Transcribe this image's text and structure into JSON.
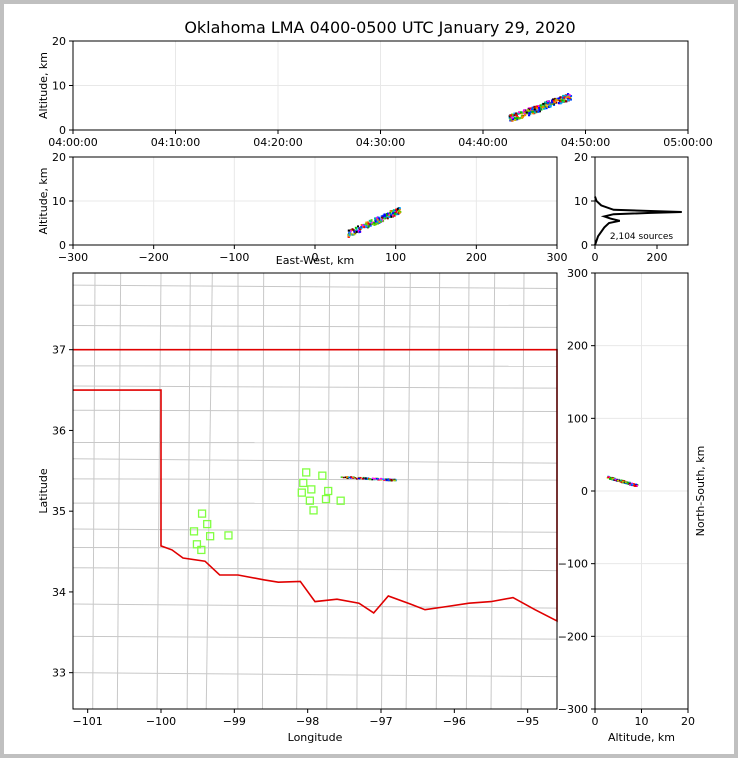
{
  "chart_data": {
    "type": "scatter",
    "title": "Oklahoma LMA 0400-0500 UTC January 29, 2020",
    "panels": {
      "time_height": {
        "ylabel": "Altitude, km",
        "ylim": [
          0,
          20
        ],
        "yticks": [
          "0",
          "10",
          "20"
        ],
        "xlim": [
          "04:00:00",
          "05:00:00"
        ],
        "xticks": [
          "04:00:00",
          "04:10:00",
          "04:20:00",
          "04:30:00",
          "04:40:00",
          "04:50:00",
          "05:00:00"
        ],
        "grid": true
      },
      "ew_height": {
        "xlabel": "East-West, km",
        "ylabel": "Altitude, km",
        "xlim": [
          -300,
          300
        ],
        "ylim": [
          0,
          20
        ],
        "xticks": [
          "−300",
          "−200",
          "−100",
          "0",
          "100",
          "200",
          "300"
        ],
        "yticks": [
          "0",
          "10",
          "20"
        ],
        "grid": true
      },
      "histogram": {
        "xlim": [
          0,
          300
        ],
        "ylim": [
          0,
          20
        ],
        "xticks": [
          "0",
          "200"
        ],
        "yticks": [
          "0",
          "10",
          "20"
        ],
        "annotation": "2,104 sources",
        "profile": [
          [
            0,
            0
          ],
          [
            10,
            2
          ],
          [
            20,
            3
          ],
          [
            30,
            4
          ],
          [
            45,
            5
          ],
          [
            80,
            5.5
          ],
          [
            50,
            6
          ],
          [
            30,
            6.5
          ],
          [
            60,
            7
          ],
          [
            180,
            7.3
          ],
          [
            280,
            7.5
          ],
          [
            60,
            8
          ],
          [
            20,
            9
          ],
          [
            5,
            10
          ],
          [
            0,
            11
          ]
        ]
      },
      "map": {
        "xlabel": "Longitude",
        "ylabel": "Latitude",
        "xlim": [
          -101.2,
          -94.6
        ],
        "ylim": [
          32.55,
          37.95
        ],
        "xticks": [
          "−101",
          "−100",
          "−99",
          "−98",
          "−97",
          "−96",
          "−95"
        ],
        "yticks": [
          "33",
          "34",
          "35",
          "36",
          "37"
        ],
        "stations": [
          [
            -98.02,
            35.48
          ],
          [
            -98.06,
            35.35
          ],
          [
            -97.95,
            35.27
          ],
          [
            -98.08,
            35.23
          ],
          [
            -97.8,
            35.44
          ],
          [
            -97.72,
            35.25
          ],
          [
            -97.75,
            35.15
          ],
          [
            -97.97,
            35.13
          ],
          [
            -97.92,
            35.01
          ],
          [
            -97.55,
            35.13
          ],
          [
            -99.44,
            34.97
          ],
          [
            -99.37,
            34.84
          ],
          [
            -99.55,
            34.75
          ],
          [
            -99.33,
            34.69
          ],
          [
            -99.51,
            34.59
          ],
          [
            -99.45,
            34.52
          ],
          [
            -99.08,
            34.7
          ]
        ]
      },
      "ns_height": {
        "xlabel": "Altitude, km",
        "ylabel": "North-South, km",
        "xlim": [
          0,
          20
        ],
        "ylim": [
          -300,
          300
        ],
        "xticks": [
          "0",
          "10",
          "20"
        ],
        "yticks": [
          "−300",
          "−200",
          "−100",
          "0",
          "100",
          "200",
          "300"
        ],
        "grid": true
      }
    },
    "sources_summary": {
      "time_range": [
        "04:42:30",
        "04:48:30"
      ],
      "ew_range_km": [
        40,
        105
      ],
      "ns_range_km": [
        8,
        20
      ],
      "alt_range_km": [
        2,
        9
      ]
    },
    "colors": {
      "border": "#e00000",
      "station": "#80ff40",
      "county": "#c8c8c8",
      "grid": "#e8e8e8"
    }
  }
}
